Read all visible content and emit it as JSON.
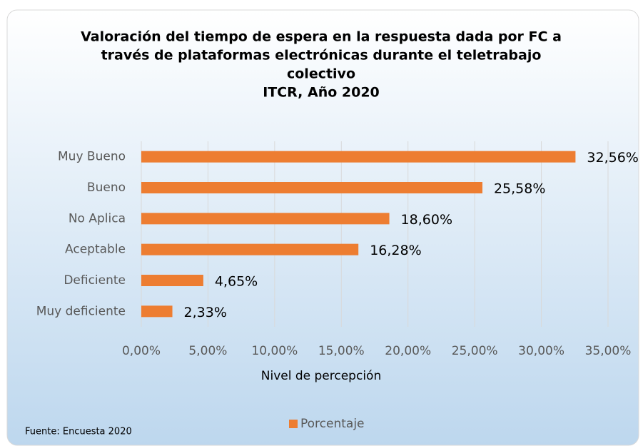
{
  "chart_data": {
    "type": "bar",
    "orientation": "horizontal",
    "title": [
      "Valoración del tiempo de espera en la respuesta dada por FC a",
      "través de plataformas electrónicas durante el teletrabajo",
      "colectivo",
      "ITCR, Año 2020"
    ],
    "categories": [
      "Muy Bueno",
      "Bueno",
      "No Aplica",
      "Aceptable",
      "Deficiente",
      "Muy deficiente"
    ],
    "series": [
      {
        "name": "Porcentaje",
        "color": "#ed7d31",
        "values": [
          32.56,
          25.58,
          18.6,
          16.28,
          4.65,
          2.33
        ],
        "value_labels": [
          "32,56%",
          "25,58%",
          "18,60%",
          "16,28%",
          "4,65%",
          "2,33%"
        ]
      }
    ],
    "xlim": [
      0,
      35
    ],
    "xticks": [
      {
        "value": 0,
        "label": "0,00%"
      },
      {
        "value": 5,
        "label": "5,00%"
      },
      {
        "value": 10,
        "label": "10,00%"
      },
      {
        "value": 15,
        "label": "15,00%"
      },
      {
        "value": 20,
        "label": "20,00%"
      },
      {
        "value": 25,
        "label": "25,00%"
      },
      {
        "value": 30,
        "label": "30,00%"
      },
      {
        "value": 35,
        "label": "35,00%"
      }
    ],
    "xlabel": "Nivel de percepción",
    "grid": true,
    "legend": "bottom",
    "source": "Fuente: Encuesta 2020"
  }
}
